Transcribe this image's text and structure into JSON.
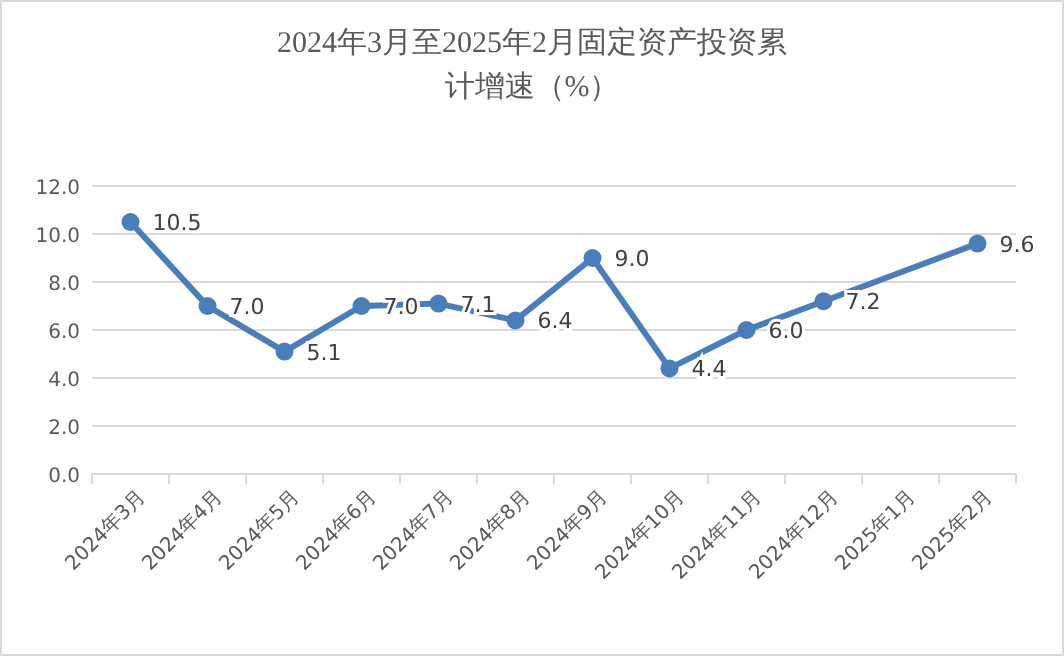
{
  "chart_data": {
    "type": "line",
    "title": "2024年3月至2025年2月固定资产投资累计增速（%）",
    "categories": [
      "2024年3月",
      "2024年4月",
      "2024年5月",
      "2024年6月",
      "2024年7月",
      "2024年8月",
      "2024年9月",
      "2024年10月",
      "2024年11月",
      "2024年12月",
      "2025年1月",
      "2025年2月"
    ],
    "series": [
      {
        "color": "#4a7ebb",
        "values": [
          10.5,
          7.0,
          5.1,
          7.0,
          7.1,
          6.4,
          9.0,
          4.4,
          6.0,
          7.2,
          null,
          9.6
        ],
        "value_labels": [
          "10.5",
          "7.0",
          "5.1",
          "7.0",
          "7.1",
          "6.4",
          "9.0",
          "4.4",
          "6.0",
          "7.2",
          null,
          "9.6"
        ]
      }
    ],
    "ylim": [
      0,
      12
    ],
    "yticks": [
      {
        "value": 0,
        "label": "0.0"
      },
      {
        "value": 2,
        "label": "2.0"
      },
      {
        "value": 4,
        "label": "4.0"
      },
      {
        "value": 6,
        "label": "6.0"
      },
      {
        "value": 8,
        "label": "8.0"
      },
      {
        "value": 10,
        "label": "10.0"
      },
      {
        "value": 12,
        "label": "12.0"
      }
    ],
    "grid": "y",
    "marker": "circle",
    "line_style": "solid"
  }
}
